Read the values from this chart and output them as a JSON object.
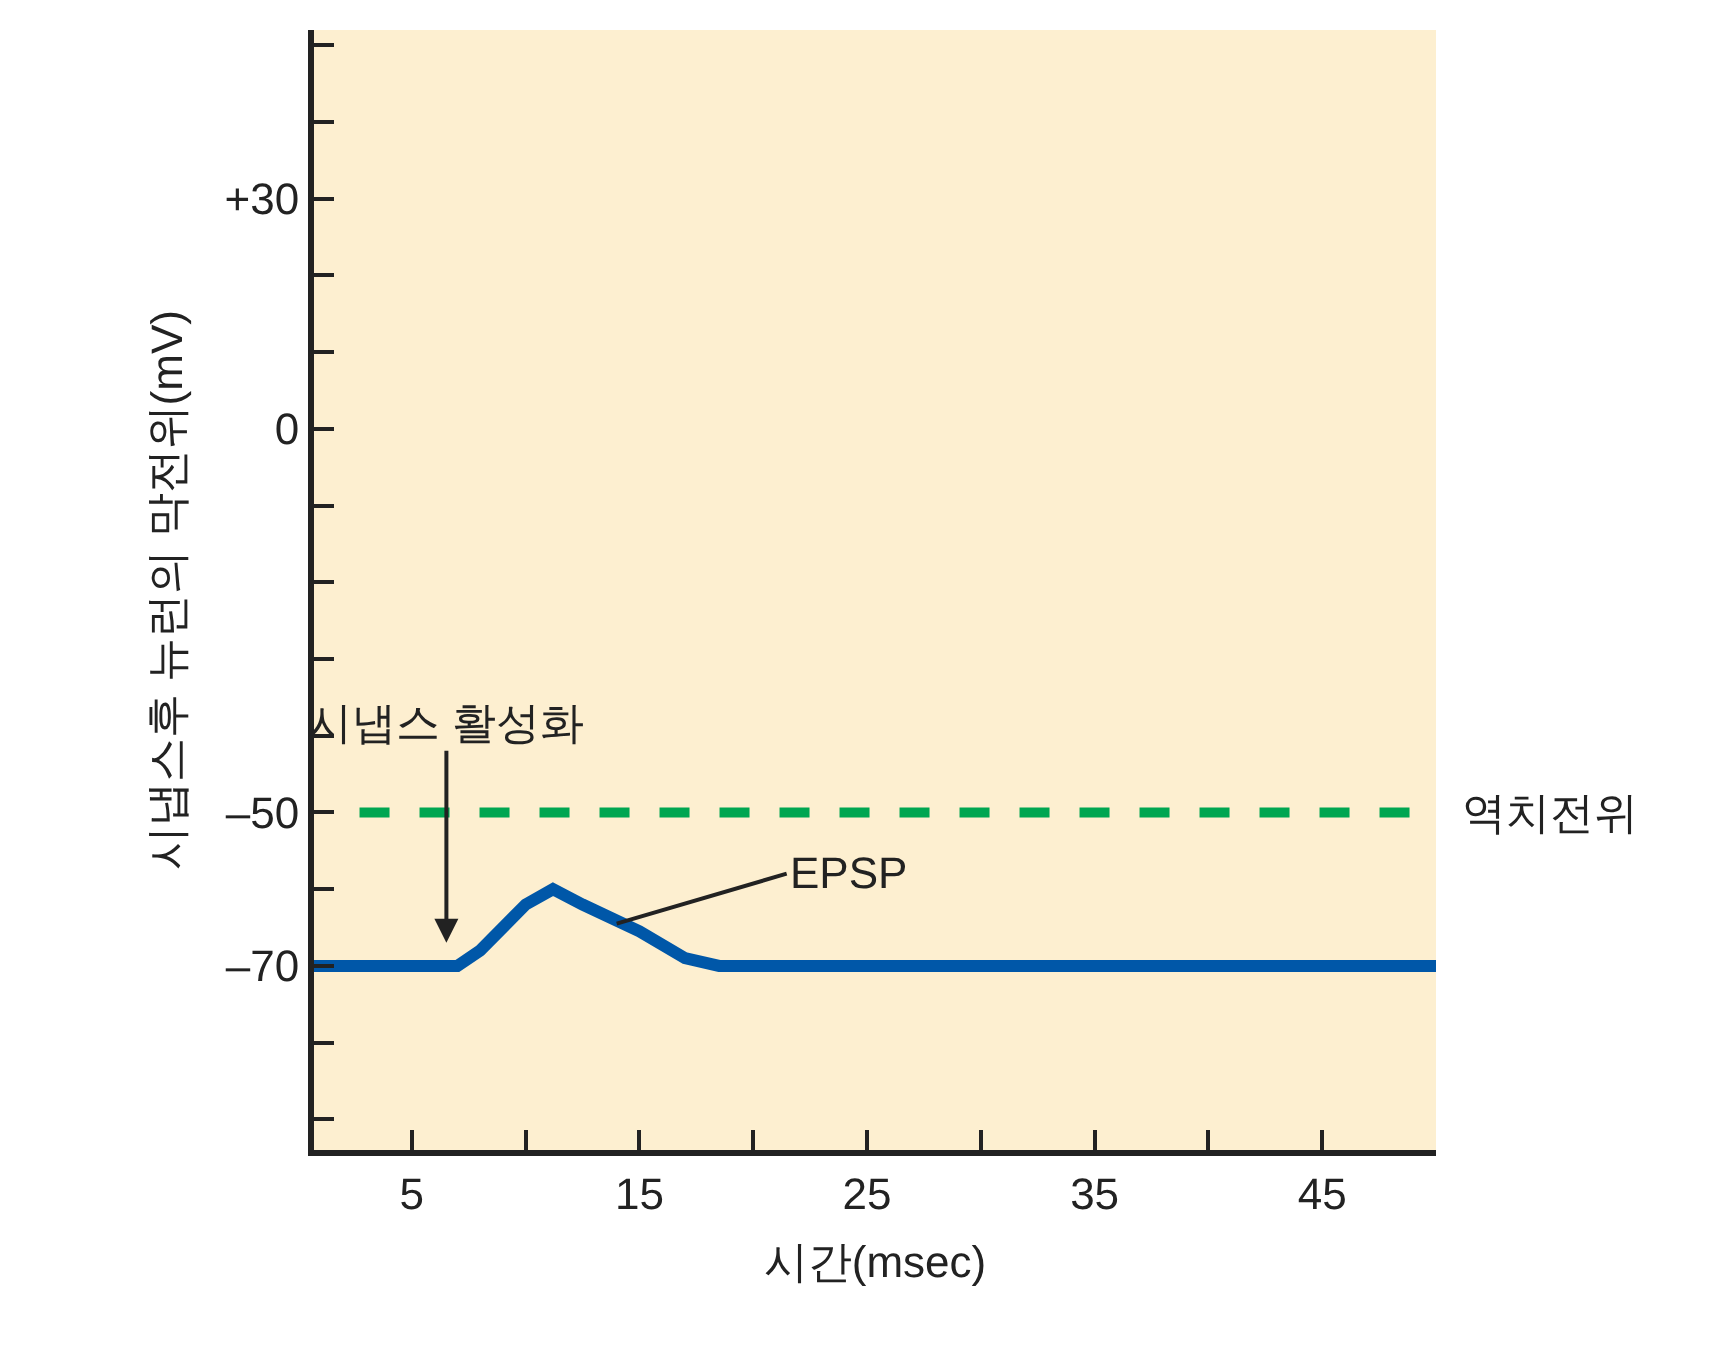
{
  "chart_data": {
    "type": "line",
    "xlabel": "시간(msec)",
    "ylabel": "시냅스후 뉴런의 막전위(mV)",
    "x": [
      0.7,
      7,
      8,
      10,
      11.2,
      12.5,
      15,
      17,
      18.5,
      50
    ],
    "series": [
      {
        "color": "#0057a8",
        "values": [
          -70,
          -70,
          -68,
          -62,
          -60,
          -62,
          -65.5,
          -69,
          -70,
          -70
        ]
      }
    ],
    "xlim": [
      0.7,
      50
    ],
    "ylim": [
      -94,
      52
    ],
    "xticks": [
      5,
      {
        "value": 10,
        "label": null
      },
      15,
      {
        "value": 20,
        "label": null
      },
      25,
      {
        "value": 30,
        "label": null
      },
      35,
      {
        "value": 40,
        "label": null
      },
      45,
      {
        "value": 50,
        "label": null
      }
    ],
    "yticks": [
      {
        "value": -90,
        "label": null
      },
      {
        "value": -80,
        "label": null
      },
      {
        "value": -70,
        "label": "–70"
      },
      {
        "value": -60,
        "label": null
      },
      {
        "value": -50,
        "label": "–50"
      },
      {
        "value": -40,
        "label": null
      },
      {
        "value": -30,
        "label": null
      },
      {
        "value": -20,
        "label": null
      },
      {
        "value": -10,
        "label": null
      },
      0,
      {
        "value": 10,
        "label": null
      },
      {
        "value": 20,
        "label": null
      },
      {
        "value": 30,
        "label": "+30"
      },
      {
        "value": 40,
        "label": null
      },
      {
        "value": 50,
        "label": null
      }
    ],
    "ref_lines": [
      {
        "axis": "y",
        "value": -50,
        "label": "역치전위",
        "color": "#00a651",
        "line_style": "dashed"
      }
    ],
    "annotations": [
      "시냅스 활성화",
      {
        "text": "EPSP",
        "x": 14,
        "y": -64.5
      }
    ],
    "grid": false,
    "marker": "none",
    "line_style": "solid"
  }
}
